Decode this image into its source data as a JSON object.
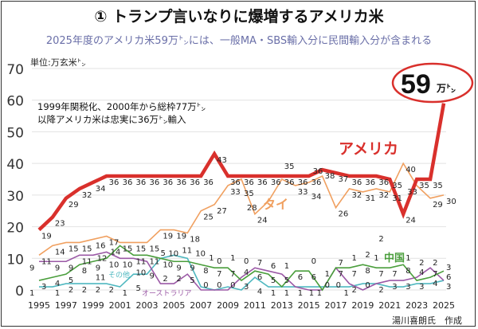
{
  "title": "① トランプ言いなりに爆増するアメリカ米",
  "subtitle": "2025年度のアメリカ米59万㌧には、一般MA・SBS輸入分に民間輸入分が含まれる",
  "unit": "単位:万玄米㌧",
  "note_lines": [
    "1999年関税化、2000年から総枠77万㌧",
    "以降アメリカ米は忠実に36万㌧輸入"
  ],
  "callout": {
    "value": "59",
    "unit": "万㌧",
    "color": "#d9302c"
  },
  "credit": "湯川喜朗氏　作成",
  "chart_data": {
    "type": "line",
    "x": [
      1995,
      1996,
      1997,
      1998,
      1999,
      2000,
      2001,
      2002,
      2003,
      2004,
      2005,
      2006,
      2007,
      2008,
      2009,
      2010,
      2011,
      2012,
      2013,
      2014,
      2015,
      2016,
      2017,
      2018,
      2019,
      2020,
      2021,
      2022,
      2023,
      2024,
      2025
    ],
    "xticks": [
      "1995",
      "1997",
      "1999",
      "2001",
      "2003",
      "2005",
      "2007",
      "2009",
      "2011",
      "2013",
      "2015",
      "2017",
      "2019",
      "2021",
      "2023",
      "2025"
    ],
    "ylim": [
      0,
      70
    ],
    "yticks": [
      "0",
      "10",
      "20",
      "30",
      "40",
      "50",
      "60",
      "70"
    ],
    "grid": true,
    "series": [
      {
        "name": "アメリカ",
        "color": "#d9302c",
        "values": [
          19,
          23,
          29,
          32,
          34,
          36,
          36,
          36,
          36,
          36,
          36,
          36,
          36,
          43,
          36,
          36,
          36,
          36,
          36,
          36,
          36,
          38,
          37,
          36,
          36,
          36,
          35,
          24,
          35,
          35,
          59
        ]
      },
      {
        "name": "タイ",
        "color": "#f0a060",
        "values": [
          11,
          14,
          15,
          15,
          16,
          17,
          15,
          15,
          15,
          19,
          19,
          18,
          25,
          27,
          33,
          35,
          24,
          28,
          35,
          33,
          34,
          36,
          26,
          32,
          31,
          32,
          31,
          40,
          33,
          29,
          30
        ]
      },
      {
        "name": "中国",
        "color": "#4a9e3c",
        "values": [
          3,
          4,
          5,
          8,
          9,
          10,
          14,
          11,
          11,
          10,
          9,
          9,
          8,
          7,
          7,
          3,
          6,
          5,
          1,
          6,
          6,
          0,
          7,
          7,
          8,
          7,
          7,
          8,
          3,
          4,
          6
        ]
      },
      {
        "name": "オーストラリア",
        "color": "#9b59a6",
        "values": [
          9,
          9,
          9,
          11,
          11,
          12,
          10,
          10,
          9,
          2,
          2,
          5,
          0,
          0,
          0,
          4,
          7,
          6,
          5,
          1,
          0,
          0,
          7,
          2,
          0,
          2,
          3,
          3,
          4,
          7,
          3
        ]
      },
      {
        "name": "その他",
        "color": "#4fb8c0",
        "values": [
          1,
          1,
          2,
          2,
          2,
          2,
          1,
          5,
          5,
          10,
          11,
          10,
          1,
          0,
          1,
          0,
          4,
          1,
          1,
          1,
          1,
          1,
          1,
          1,
          2,
          2,
          1,
          1,
          2,
          2,
          3
        ]
      }
    ]
  }
}
